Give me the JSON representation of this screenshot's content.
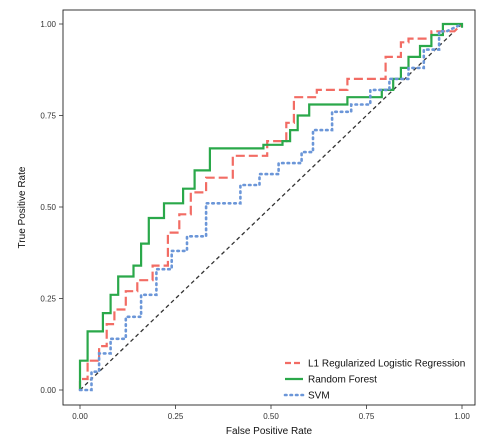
{
  "chart_data": {
    "type": "line",
    "xlabel": "False Positive Rate",
    "ylabel": "True Positive Rate",
    "xlim": [
      0,
      1
    ],
    "ylim": [
      0,
      1
    ],
    "grid": false,
    "legend_position": "bottom-right",
    "x_ticks": [
      0.0,
      0.25,
      0.5,
      0.75,
      1.0
    ],
    "y_ticks": [
      0.0,
      0.25,
      0.5,
      0.75,
      1.0
    ],
    "x_tick_labels": [
      "0.00",
      "0.25",
      "0.50",
      "0.75",
      "1.00"
    ],
    "y_tick_labels": [
      "0.00",
      "0.25",
      "0.50",
      "0.75",
      "1.00"
    ],
    "reference_line": {
      "x": [
        0,
        1
      ],
      "y": [
        0,
        1
      ],
      "color": "#333333",
      "style": "dashed"
    },
    "series": [
      {
        "name": "L1 Regularized Logistic Regression",
        "color": "#f26c64",
        "style": "longdash",
        "x": [
          0.0,
          0.0,
          0.02,
          0.02,
          0.05,
          0.05,
          0.07,
          0.07,
          0.09,
          0.09,
          0.12,
          0.12,
          0.15,
          0.15,
          0.19,
          0.19,
          0.23,
          0.23,
          0.26,
          0.26,
          0.29,
          0.29,
          0.33,
          0.33,
          0.4,
          0.4,
          0.49,
          0.49,
          0.54,
          0.54,
          0.56,
          0.56,
          0.62,
          0.62,
          0.7,
          0.7,
          0.8,
          0.8,
          0.84,
          0.84,
          0.86,
          0.86,
          0.92,
          0.92,
          0.98,
          1.0
        ],
        "y": [
          0.0,
          0.03,
          0.03,
          0.08,
          0.08,
          0.12,
          0.12,
          0.18,
          0.18,
          0.22,
          0.22,
          0.27,
          0.27,
          0.3,
          0.3,
          0.34,
          0.34,
          0.43,
          0.43,
          0.48,
          0.48,
          0.54,
          0.54,
          0.58,
          0.58,
          0.64,
          0.64,
          0.68,
          0.68,
          0.73,
          0.73,
          0.8,
          0.8,
          0.82,
          0.82,
          0.85,
          0.85,
          0.91,
          0.91,
          0.95,
          0.95,
          0.96,
          0.96,
          0.98,
          0.98,
          1.0
        ]
      },
      {
        "name": "Random Forest",
        "color": "#2aa84a",
        "style": "solid",
        "x": [
          0.0,
          0.0,
          0.02,
          0.02,
          0.06,
          0.06,
          0.08,
          0.08,
          0.1,
          0.1,
          0.14,
          0.14,
          0.16,
          0.16,
          0.18,
          0.18,
          0.22,
          0.22,
          0.27,
          0.27,
          0.3,
          0.3,
          0.34,
          0.34,
          0.48,
          0.48,
          0.53,
          0.53,
          0.55,
          0.55,
          0.57,
          0.57,
          0.6,
          0.6,
          0.7,
          0.7,
          0.79,
          0.79,
          0.82,
          0.82,
          0.84,
          0.84,
          0.86,
          0.86,
          0.89,
          0.89,
          0.92,
          0.92,
          0.95,
          0.95,
          1.0,
          1.0
        ],
        "y": [
          0.0,
          0.08,
          0.08,
          0.16,
          0.16,
          0.21,
          0.21,
          0.26,
          0.26,
          0.31,
          0.31,
          0.34,
          0.34,
          0.4,
          0.4,
          0.47,
          0.47,
          0.51,
          0.51,
          0.55,
          0.55,
          0.6,
          0.6,
          0.66,
          0.66,
          0.67,
          0.67,
          0.68,
          0.68,
          0.71,
          0.71,
          0.75,
          0.75,
          0.78,
          0.78,
          0.8,
          0.8,
          0.82,
          0.82,
          0.85,
          0.85,
          0.88,
          0.88,
          0.91,
          0.91,
          0.94,
          0.94,
          0.97,
          0.97,
          1.0,
          1.0,
          0.99
        ]
      },
      {
        "name": "SVM",
        "color": "#6b96d8",
        "style": "dotted",
        "x": [
          0.0,
          0.03,
          0.03,
          0.05,
          0.05,
          0.08,
          0.08,
          0.12,
          0.12,
          0.16,
          0.16,
          0.2,
          0.2,
          0.24,
          0.24,
          0.28,
          0.28,
          0.33,
          0.33,
          0.42,
          0.42,
          0.47,
          0.47,
          0.52,
          0.52,
          0.58,
          0.58,
          0.61,
          0.61,
          0.66,
          0.66,
          0.71,
          0.71,
          0.76,
          0.76,
          0.81,
          0.81,
          0.86,
          0.86,
          0.9,
          0.9,
          0.94,
          0.94,
          0.96,
          1.0
        ],
        "y": [
          0.0,
          0.0,
          0.05,
          0.05,
          0.1,
          0.1,
          0.14,
          0.14,
          0.2,
          0.2,
          0.26,
          0.26,
          0.33,
          0.33,
          0.38,
          0.38,
          0.42,
          0.42,
          0.51,
          0.51,
          0.56,
          0.56,
          0.59,
          0.59,
          0.62,
          0.62,
          0.65,
          0.65,
          0.71,
          0.71,
          0.76,
          0.76,
          0.78,
          0.78,
          0.82,
          0.82,
          0.85,
          0.85,
          0.88,
          0.88,
          0.93,
          0.93,
          0.98,
          0.98,
          1.0
        ]
      }
    ]
  }
}
